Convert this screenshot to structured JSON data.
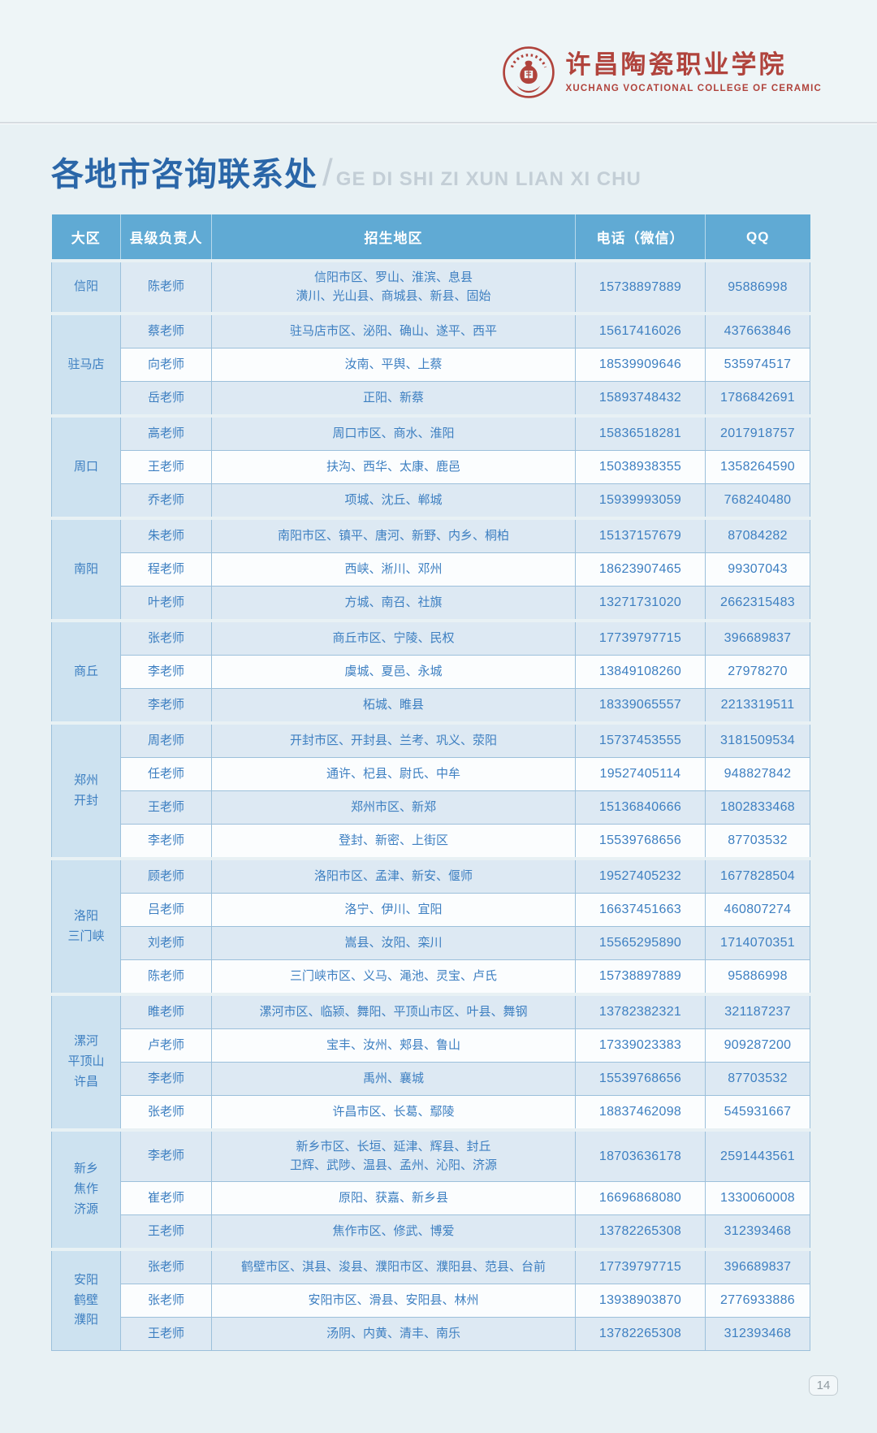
{
  "logo": {
    "college_name_cn": "许昌陶瓷职业学院",
    "college_name_en": "XUCHANG VOCATIONAL COLLEGE OF CERAMIC"
  },
  "title": {
    "cn": "各地市咨询联系处",
    "slash": "/",
    "pinyin": "GE DI SHI ZI XUN LIAN XI CHU"
  },
  "table": {
    "headers": [
      "大区",
      "县级负责人",
      "招生地区",
      "电话（微信）",
      "QQ"
    ],
    "groups": [
      {
        "region": [
          "信阳"
        ],
        "rows": [
          {
            "person": "陈老师",
            "area": [
              "信阳市区、罗山、淮滨、息县",
              "潢川、光山县、商城县、新县、固始"
            ],
            "phone": "15738897889",
            "qq": "95886998"
          }
        ]
      },
      {
        "region": [
          "驻马店"
        ],
        "rows": [
          {
            "person": "蔡老师",
            "area": [
              "驻马店市区、泌阳、确山、遂平、西平"
            ],
            "phone": "15617416026",
            "qq": "437663846"
          },
          {
            "person": "向老师",
            "area": [
              "汝南、平舆、上蔡"
            ],
            "phone": "18539909646",
            "qq": "535974517"
          },
          {
            "person": "岳老师",
            "area": [
              "正阳、新蔡"
            ],
            "phone": "15893748432",
            "qq": "1786842691"
          }
        ]
      },
      {
        "region": [
          "周口"
        ],
        "rows": [
          {
            "person": "高老师",
            "area": [
              "周口市区、商水、淮阳"
            ],
            "phone": "15836518281",
            "qq": "2017918757"
          },
          {
            "person": "王老师",
            "area": [
              "扶沟、西华、太康、鹿邑"
            ],
            "phone": "15038938355",
            "qq": "1358264590"
          },
          {
            "person": "乔老师",
            "area": [
              "项城、沈丘、郸城"
            ],
            "phone": "15939993059",
            "qq": "768240480"
          }
        ]
      },
      {
        "region": [
          "南阳"
        ],
        "rows": [
          {
            "person": "朱老师",
            "area": [
              "南阳市区、镇平、唐河、新野、内乡、桐柏"
            ],
            "phone": "15137157679",
            "qq": "87084282"
          },
          {
            "person": "程老师",
            "area": [
              "西峡、淅川、邓州"
            ],
            "phone": "18623907465",
            "qq": "99307043"
          },
          {
            "person": "叶老师",
            "area": [
              "方城、南召、社旗"
            ],
            "phone": "13271731020",
            "qq": "2662315483"
          }
        ]
      },
      {
        "region": [
          "商丘"
        ],
        "rows": [
          {
            "person": "张老师",
            "area": [
              "商丘市区、宁陵、民权"
            ],
            "phone": "17739797715",
            "qq": "396689837"
          },
          {
            "person": "李老师",
            "area": [
              "虞城、夏邑、永城"
            ],
            "phone": "13849108260",
            "qq": "27978270"
          },
          {
            "person": "李老师",
            "area": [
              "柘城、睢县"
            ],
            "phone": "18339065557",
            "qq": "2213319511"
          }
        ]
      },
      {
        "region": [
          "郑州",
          "开封"
        ],
        "rows": [
          {
            "person": "周老师",
            "area": [
              "开封市区、开封县、兰考、巩义、荥阳"
            ],
            "phone": "15737453555",
            "qq": "3181509534"
          },
          {
            "person": "任老师",
            "area": [
              "通许、杞县、尉氏、中牟"
            ],
            "phone": "19527405114",
            "qq": "948827842"
          },
          {
            "person": "王老师",
            "area": [
              "郑州市区、新郑"
            ],
            "phone": "15136840666",
            "qq": "1802833468"
          },
          {
            "person": "李老师",
            "area": [
              "登封、新密、上街区"
            ],
            "phone": "15539768656",
            "qq": "87703532"
          }
        ]
      },
      {
        "region": [
          "洛阳",
          "三门峡"
        ],
        "rows": [
          {
            "person": "顾老师",
            "area": [
              "洛阳市区、孟津、新安、偃师"
            ],
            "phone": "19527405232",
            "qq": "1677828504"
          },
          {
            "person": "吕老师",
            "area": [
              "洛宁、伊川、宜阳"
            ],
            "phone": "16637451663",
            "qq": "460807274"
          },
          {
            "person": "刘老师",
            "area": [
              "嵩县、汝阳、栾川"
            ],
            "phone": "15565295890",
            "qq": "1714070351"
          },
          {
            "person": "陈老师",
            "area": [
              "三门峡市区、义马、渑池、灵宝、卢氏"
            ],
            "phone": "15738897889",
            "qq": "95886998"
          }
        ]
      },
      {
        "region": [
          "漯河",
          "平顶山",
          "许昌"
        ],
        "rows": [
          {
            "person": "睢老师",
            "area": [
              "漯河市区、临颍、舞阳、平顶山市区、叶县、舞钢"
            ],
            "phone": "13782382321",
            "qq": "321187237"
          },
          {
            "person": "卢老师",
            "area": [
              "宝丰、汝州、郏县、鲁山"
            ],
            "phone": "17339023383",
            "qq": "909287200"
          },
          {
            "person": "李老师",
            "area": [
              "禹州、襄城"
            ],
            "phone": "15539768656",
            "qq": "87703532"
          },
          {
            "person": "张老师",
            "area": [
              "许昌市区、长葛、鄢陵"
            ],
            "phone": "18837462098",
            "qq": "545931667"
          }
        ]
      },
      {
        "region": [
          "新乡",
          "焦作",
          "济源"
        ],
        "rows": [
          {
            "person": "李老师",
            "area": [
              "新乡市区、长垣、延津、辉县、封丘",
              "卫辉、武陟、温县、孟州、沁阳、济源"
            ],
            "phone": "18703636178",
            "qq": "2591443561"
          },
          {
            "person": "崔老师",
            "area": [
              "原阳、获嘉、新乡县"
            ],
            "phone": "16696868080",
            "qq": "1330060008"
          },
          {
            "person": "王老师",
            "area": [
              "焦作市区、修武、博爱"
            ],
            "phone": "13782265308",
            "qq": "312393468"
          }
        ]
      },
      {
        "region": [
          "安阳",
          "鹤壁",
          "濮阳"
        ],
        "rows": [
          {
            "person": "张老师",
            "area": [
              "鹤壁市区、淇县、浚县、濮阳市区、濮阳县、范县、台前"
            ],
            "phone": "17739797715",
            "qq": "396689837"
          },
          {
            "person": "张老师",
            "area": [
              "安阳市区、滑县、安阳县、林州"
            ],
            "phone": "13938903870",
            "qq": "2776933886"
          },
          {
            "person": "王老师",
            "area": [
              "汤阴、内黄、清丰、南乐"
            ],
            "phone": "13782265308",
            "qq": "312393468"
          }
        ]
      }
    ]
  },
  "footer": {
    "page_number": "14"
  },
  "colors": {
    "brand_red": "#b0433c",
    "header_blue": "#60aad4",
    "cell_text_blue": "#3d7fc1",
    "title_blue": "#2a66a8",
    "region_cell_bg": "#cde2f0",
    "stripe_light": "#dde9f3",
    "stripe_white": "#fbfdfe",
    "page_bg": "#e8f1f4"
  }
}
